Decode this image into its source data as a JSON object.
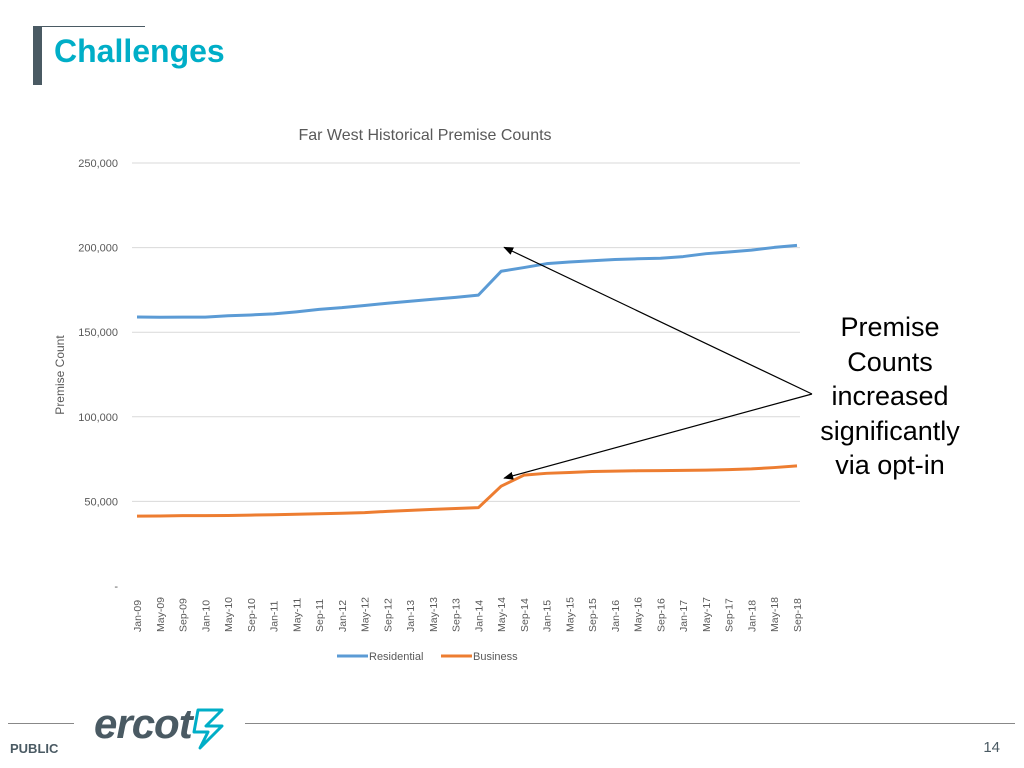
{
  "slide": {
    "title": "Challenges",
    "callout": "Premise Counts increased significantly via opt-in",
    "footer_left": "PUBLIC",
    "page_number": "14",
    "logo_text": "ercot"
  },
  "colors": {
    "title": "#00aec7",
    "residential": "#5b9bd5",
    "business": "#ed7d31",
    "grid": "#d9d9d9",
    "logo": "#4a5a63",
    "logo_accent": "#00aec7"
  },
  "chart_data": {
    "type": "line",
    "title": "Far West Historical Premise Counts",
    "xlabel": "",
    "ylabel": "Premise Count",
    "ylim": [
      0,
      250000
    ],
    "yticks": [
      0,
      50000,
      100000,
      150000,
      200000,
      250000
    ],
    "ytick_labels": [
      "-",
      "50,000",
      "100,000",
      "150,000",
      "200,000",
      "250,000"
    ],
    "grid": true,
    "legend": "bottom",
    "x": [
      "Jan-09",
      "May-09",
      "Sep-09",
      "Jan-10",
      "May-10",
      "Sep-10",
      "Jan-11",
      "May-11",
      "Sep-11",
      "Jan-12",
      "May-12",
      "Sep-12",
      "Jan-13",
      "May-13",
      "Sep-13",
      "Jan-14",
      "May-14",
      "Sep-14",
      "Jan-15",
      "May-15",
      "Sep-15",
      "Jan-16",
      "May-16",
      "Sep-16",
      "Jan-17",
      "May-17",
      "Sep-17",
      "Jan-18",
      "May-18",
      "Sep-18"
    ],
    "series": [
      {
        "name": "Residential",
        "values": [
          159000,
          158800,
          158900,
          158900,
          159700,
          160200,
          160800,
          162000,
          163500,
          164500,
          165800,
          167100,
          168300,
          169500,
          170600,
          171900,
          186000,
          188200,
          190500,
          191500,
          192200,
          193000,
          193400,
          193700,
          194700,
          196400,
          197400,
          198500,
          200100,
          201300
        ]
      },
      {
        "name": "Business",
        "values": [
          41300,
          41400,
          41600,
          41600,
          41700,
          41900,
          42100,
          42400,
          42700,
          43000,
          43400,
          44100,
          44700,
          45300,
          45800,
          46300,
          59000,
          65500,
          66600,
          67100,
          67700,
          67900,
          68100,
          68200,
          68300,
          68500,
          68800,
          69200,
          70000,
          71000
        ]
      }
    ],
    "annotation": {
      "text": "Premise Counts increased significantly via opt-in",
      "targets": [
        "Residential May-14",
        "Business May-14"
      ]
    }
  }
}
